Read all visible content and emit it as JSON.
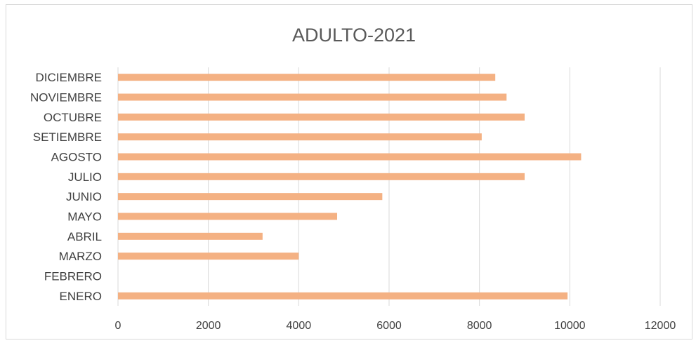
{
  "chart_data": {
    "type": "bar",
    "orientation": "horizontal",
    "title": "ADULTO-2021",
    "categories": [
      "ENERO",
      "FEBRERO",
      "MARZO",
      "ABRIL",
      "MAYO",
      "JUNIO",
      "JULIO",
      "AGOSTO",
      "SETIEMBRE",
      "OCTUBRE",
      "NOVIEMBRE",
      "DICIEMBRE"
    ],
    "values": [
      9950,
      0,
      4000,
      3200,
      4850,
      5850,
      9000,
      10250,
      8050,
      9000,
      8600,
      8350
    ],
    "xlim": [
      0,
      12000
    ],
    "xticks": [
      "0",
      "2000",
      "4000",
      "6000",
      "8000",
      "10000",
      "12000"
    ],
    "grid": true,
    "legend": "none",
    "bar_color": "#F4B183",
    "grid_color": "#d9d9d9"
  }
}
